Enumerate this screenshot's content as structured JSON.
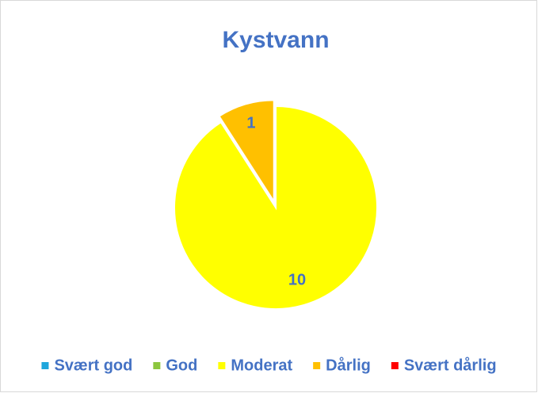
{
  "chart_data": {
    "type": "pie",
    "title": "Kystvann",
    "categories": [
      "Svært god",
      "God",
      "Moderat",
      "Dårlig",
      "Svært dårlig"
    ],
    "values": [
      0,
      0,
      10,
      1,
      0
    ],
    "colors": [
      "#1ea6dc",
      "#8cc63e",
      "#ffff00",
      "#ffc000",
      "#ff0000"
    ],
    "legend": "bottom"
  }
}
